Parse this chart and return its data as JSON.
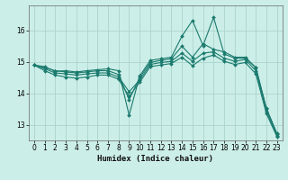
{
  "xlabel": "Humidex (Indice chaleur)",
  "bg_color": "#cceee8",
  "line_color": "#1a7a6e",
  "grid_color": "#aad4cc",
  "xlim": [
    -0.5,
    23.5
  ],
  "ylim": [
    12.5,
    16.8
  ],
  "yticks": [
    13,
    14,
    15,
    16
  ],
  "xticks": [
    0,
    1,
    2,
    3,
    4,
    5,
    6,
    7,
    8,
    9,
    10,
    11,
    12,
    13,
    14,
    15,
    16,
    17,
    18,
    19,
    20,
    21,
    22,
    23
  ],
  "series": [
    [
      14.9,
      14.85,
      14.7,
      14.72,
      14.68,
      14.72,
      14.75,
      14.78,
      14.72,
      13.3,
      14.55,
      15.05,
      15.1,
      15.15,
      15.82,
      16.32,
      15.52,
      16.42,
      15.25,
      15.12,
      15.12,
      14.82,
      13.5,
      12.7
    ],
    [
      14.9,
      14.82,
      14.72,
      14.68,
      14.65,
      14.68,
      14.72,
      14.72,
      14.6,
      13.8,
      14.5,
      14.98,
      15.05,
      15.1,
      15.5,
      15.15,
      15.58,
      15.4,
      15.32,
      15.15,
      15.15,
      14.82,
      13.52,
      12.72
    ],
    [
      14.9,
      14.78,
      14.65,
      14.62,
      14.58,
      14.62,
      14.65,
      14.65,
      14.52,
      14.05,
      14.42,
      14.92,
      14.98,
      15.02,
      15.28,
      15.02,
      15.28,
      15.32,
      15.12,
      15.02,
      15.08,
      14.72,
      13.42,
      12.65
    ],
    [
      14.9,
      14.72,
      14.58,
      14.52,
      14.48,
      14.52,
      14.58,
      14.58,
      14.45,
      13.9,
      14.35,
      14.85,
      14.9,
      14.95,
      15.15,
      14.88,
      15.12,
      15.22,
      15.02,
      14.92,
      14.98,
      14.62,
      13.35,
      12.62
    ]
  ]
}
